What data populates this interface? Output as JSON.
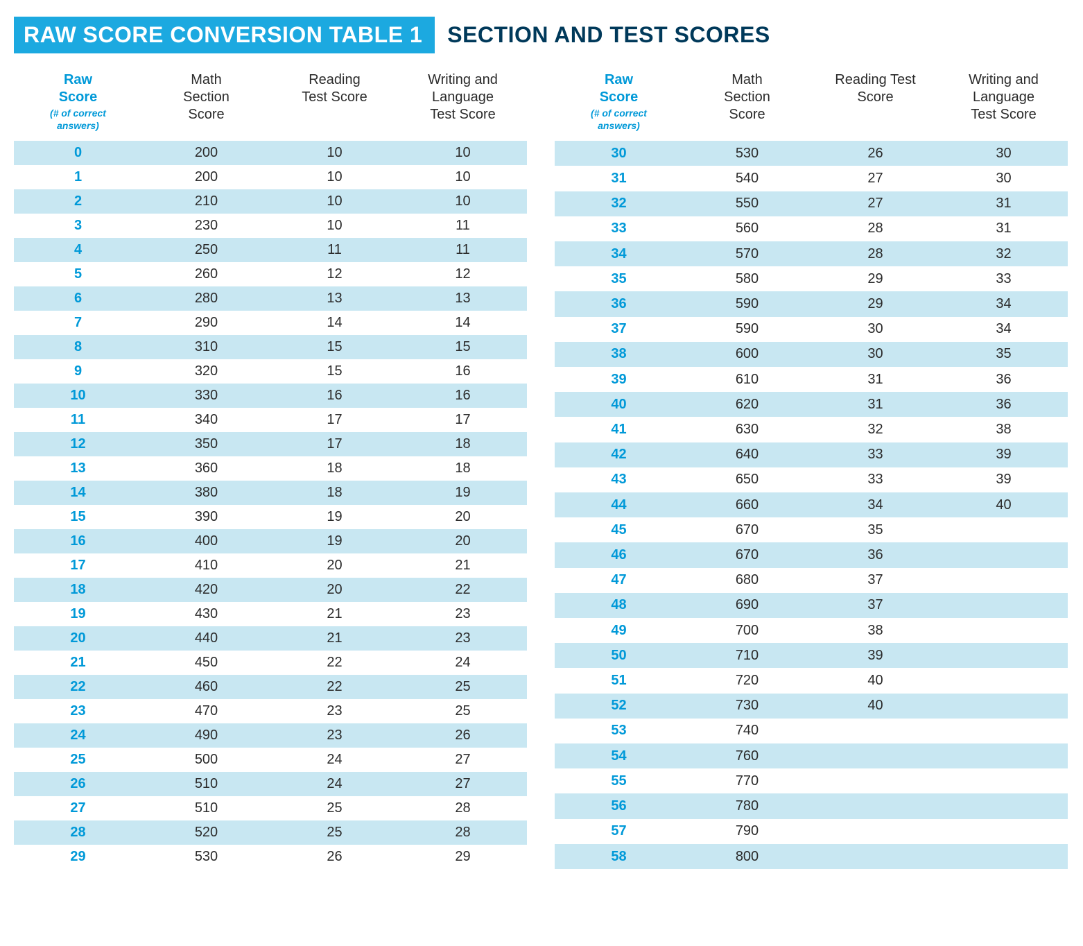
{
  "title_left": "RAW SCORE CONVERSION TABLE 1",
  "title_right": "SECTION AND TEST SCORES",
  "colors": {
    "accent": "#1ca9e0",
    "accent_text": "#0099d8",
    "title_right_text": "#00395a",
    "band": "#c8e7f2",
    "body_text": "#2b2b2b",
    "background": "#ffffff"
  },
  "headers": {
    "raw_line1": "Raw",
    "raw_line2": "Score",
    "raw_sub1": "(# of correct",
    "raw_sub2": "answers)",
    "math_line1": "Math",
    "math_line2": "Section",
    "math_line3": "Score",
    "reading_line1": "Reading",
    "reading_line2": "Test Score",
    "reading_alt_line1": "Reading Test",
    "reading_alt_line2": "Score",
    "writing_line1": "Writing and",
    "writing_line2": "Language",
    "writing_line3": "Test Score"
  },
  "left_rows": [
    {
      "raw": "0",
      "math": "200",
      "reading": "10",
      "writing": "10"
    },
    {
      "raw": "1",
      "math": "200",
      "reading": "10",
      "writing": "10"
    },
    {
      "raw": "2",
      "math": "210",
      "reading": "10",
      "writing": "10"
    },
    {
      "raw": "3",
      "math": "230",
      "reading": "10",
      "writing": "11"
    },
    {
      "raw": "4",
      "math": "250",
      "reading": "11",
      "writing": "11"
    },
    {
      "raw": "5",
      "math": "260",
      "reading": "12",
      "writing": "12"
    },
    {
      "raw": "6",
      "math": "280",
      "reading": "13",
      "writing": "13"
    },
    {
      "raw": "7",
      "math": "290",
      "reading": "14",
      "writing": "14"
    },
    {
      "raw": "8",
      "math": "310",
      "reading": "15",
      "writing": "15"
    },
    {
      "raw": "9",
      "math": "320",
      "reading": "15",
      "writing": "16"
    },
    {
      "raw": "10",
      "math": "330",
      "reading": "16",
      "writing": "16"
    },
    {
      "raw": "11",
      "math": "340",
      "reading": "17",
      "writing": "17"
    },
    {
      "raw": "12",
      "math": "350",
      "reading": "17",
      "writing": "18"
    },
    {
      "raw": "13",
      "math": "360",
      "reading": "18",
      "writing": "18"
    },
    {
      "raw": "14",
      "math": "380",
      "reading": "18",
      "writing": "19"
    },
    {
      "raw": "15",
      "math": "390",
      "reading": "19",
      "writing": "20"
    },
    {
      "raw": "16",
      "math": "400",
      "reading": "19",
      "writing": "20"
    },
    {
      "raw": "17",
      "math": "410",
      "reading": "20",
      "writing": "21"
    },
    {
      "raw": "18",
      "math": "420",
      "reading": "20",
      "writing": "22"
    },
    {
      "raw": "19",
      "math": "430",
      "reading": "21",
      "writing": "23"
    },
    {
      "raw": "20",
      "math": "440",
      "reading": "21",
      "writing": "23"
    },
    {
      "raw": "21",
      "math": "450",
      "reading": "22",
      "writing": "24"
    },
    {
      "raw": "22",
      "math": "460",
      "reading": "22",
      "writing": "25"
    },
    {
      "raw": "23",
      "math": "470",
      "reading": "23",
      "writing": "25"
    },
    {
      "raw": "24",
      "math": "490",
      "reading": "23",
      "writing": "26"
    },
    {
      "raw": "25",
      "math": "500",
      "reading": "24",
      "writing": "27"
    },
    {
      "raw": "26",
      "math": "510",
      "reading": "24",
      "writing": "27"
    },
    {
      "raw": "27",
      "math": "510",
      "reading": "25",
      "writing": "28"
    },
    {
      "raw": "28",
      "math": "520",
      "reading": "25",
      "writing": "28"
    },
    {
      "raw": "29",
      "math": "530",
      "reading": "26",
      "writing": "29"
    }
  ],
  "right_rows": [
    {
      "raw": "30",
      "math": "530",
      "reading": "26",
      "writing": "30"
    },
    {
      "raw": "31",
      "math": "540",
      "reading": "27",
      "writing": "30"
    },
    {
      "raw": "32",
      "math": "550",
      "reading": "27",
      "writing": "31"
    },
    {
      "raw": "33",
      "math": "560",
      "reading": "28",
      "writing": "31"
    },
    {
      "raw": "34",
      "math": "570",
      "reading": "28",
      "writing": "32"
    },
    {
      "raw": "35",
      "math": "580",
      "reading": "29",
      "writing": "33"
    },
    {
      "raw": "36",
      "math": "590",
      "reading": "29",
      "writing": "34"
    },
    {
      "raw": "37",
      "math": "590",
      "reading": "30",
      "writing": "34"
    },
    {
      "raw": "38",
      "math": "600",
      "reading": "30",
      "writing": "35"
    },
    {
      "raw": "39",
      "math": "610",
      "reading": "31",
      "writing": "36"
    },
    {
      "raw": "40",
      "math": "620",
      "reading": "31",
      "writing": "36"
    },
    {
      "raw": "41",
      "math": "630",
      "reading": "32",
      "writing": "38"
    },
    {
      "raw": "42",
      "math": "640",
      "reading": "33",
      "writing": "39"
    },
    {
      "raw": "43",
      "math": "650",
      "reading": "33",
      "writing": "39"
    },
    {
      "raw": "44",
      "math": "660",
      "reading": "34",
      "writing": "40"
    },
    {
      "raw": "45",
      "math": "670",
      "reading": "35",
      "writing": ""
    },
    {
      "raw": "46",
      "math": "670",
      "reading": "36",
      "writing": ""
    },
    {
      "raw": "47",
      "math": "680",
      "reading": "37",
      "writing": ""
    },
    {
      "raw": "48",
      "math": "690",
      "reading": "37",
      "writing": ""
    },
    {
      "raw": "49",
      "math": "700",
      "reading": "38",
      "writing": ""
    },
    {
      "raw": "50",
      "math": "710",
      "reading": "39",
      "writing": ""
    },
    {
      "raw": "51",
      "math": "720",
      "reading": "40",
      "writing": ""
    },
    {
      "raw": "52",
      "math": "730",
      "reading": "40",
      "writing": ""
    },
    {
      "raw": "53",
      "math": "740",
      "reading": "",
      "writing": ""
    },
    {
      "raw": "54",
      "math": "760",
      "reading": "",
      "writing": ""
    },
    {
      "raw": "55",
      "math": "770",
      "reading": "",
      "writing": ""
    },
    {
      "raw": "56",
      "math": "780",
      "reading": "",
      "writing": ""
    },
    {
      "raw": "57",
      "math": "790",
      "reading": "",
      "writing": ""
    },
    {
      "raw": "58",
      "math": "800",
      "reading": "",
      "writing": ""
    }
  ]
}
